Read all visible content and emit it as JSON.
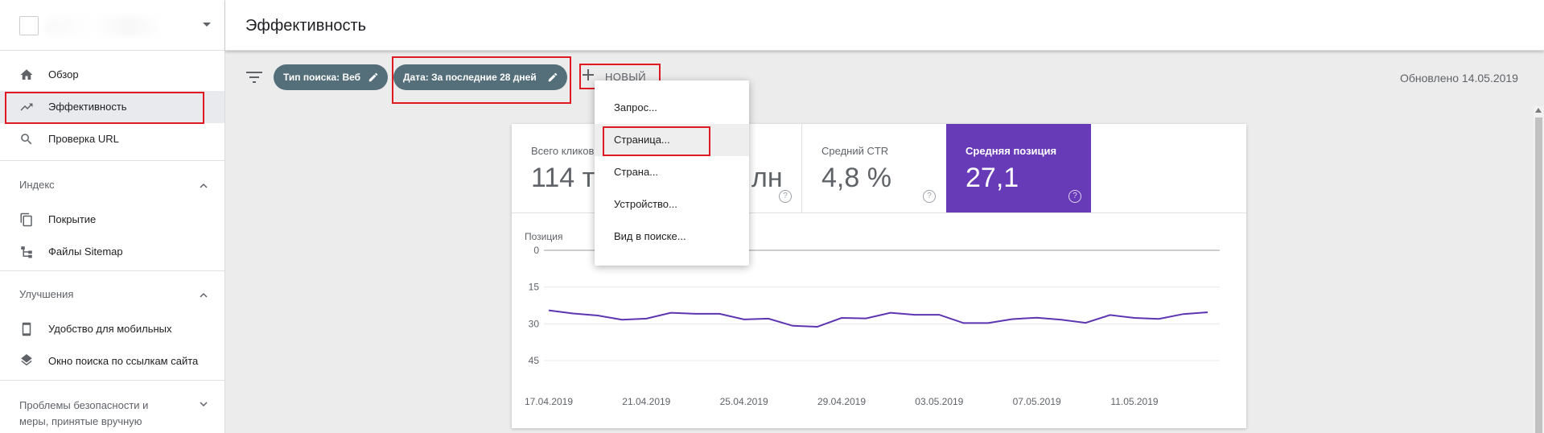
{
  "header": {
    "title": "Эффективность"
  },
  "sidebar": {
    "items": [
      {
        "label": "Обзор"
      },
      {
        "label": "Эффективность"
      },
      {
        "label": "Проверка URL"
      }
    ],
    "sections": [
      {
        "title": "Индекс",
        "items": [
          {
            "label": "Покрытие"
          },
          {
            "label": "Файлы Sitemap"
          }
        ]
      },
      {
        "title": "Улучшения",
        "items": [
          {
            "label": "Удобство для мобильных"
          },
          {
            "label": "Окно поиска по ссылкам сайта"
          }
        ]
      },
      {
        "title_line1": "Проблемы безопасности и",
        "title_line2": "меры, принятые вручную"
      }
    ]
  },
  "filters": {
    "chips": [
      {
        "label": "Тип поиска: Веб"
      },
      {
        "label": "Дата: За последние 28 дней"
      }
    ],
    "new_label": "НОВЫЙ",
    "updated": "Обновлено 14.05.2019"
  },
  "metrics": [
    {
      "label": "Всего кликов",
      "value": "114 т"
    },
    {
      "label": "",
      "value": "лн"
    },
    {
      "label": "Средний CTR",
      "value": "4,8 %"
    },
    {
      "label": "Средняя позиция",
      "value": "27,1"
    }
  ],
  "dropdown": {
    "items": [
      {
        "label": "Запрос..."
      },
      {
        "label": "Страница..."
      },
      {
        "label": "Страна..."
      },
      {
        "label": "Устройство..."
      },
      {
        "label": "Вид в поиске..."
      }
    ]
  },
  "colors": {
    "accent_purple": "#673ab7",
    "chip_bg": "#546e7a",
    "highlight_red": "#e01a22",
    "line": "#5e35b1"
  },
  "chart_data": {
    "type": "line",
    "ylabel": "Позиция",
    "y_axis_reversed": true,
    "ylim": [
      0,
      45
    ],
    "yticks": [
      "0",
      "15",
      "30",
      "45"
    ],
    "x_tick_labels": [
      "17.04.2019",
      "21.04.2019",
      "25.04.2019",
      "29.04.2019",
      "03.05.2019",
      "07.05.2019",
      "11.05.2019"
    ],
    "series": [
      {
        "values": [
          24.5,
          25.8,
          26.6,
          28.3,
          27.9,
          25.5,
          25.9,
          25.9,
          28.2,
          27.9,
          30.8,
          31.2,
          27.6,
          27.8,
          25.5,
          26.3,
          26.3,
          29.7,
          29.7,
          28.1,
          27.5,
          28.3,
          29.6,
          26.4,
          27.6,
          28.0,
          26.0,
          25.3
        ]
      }
    ]
  }
}
